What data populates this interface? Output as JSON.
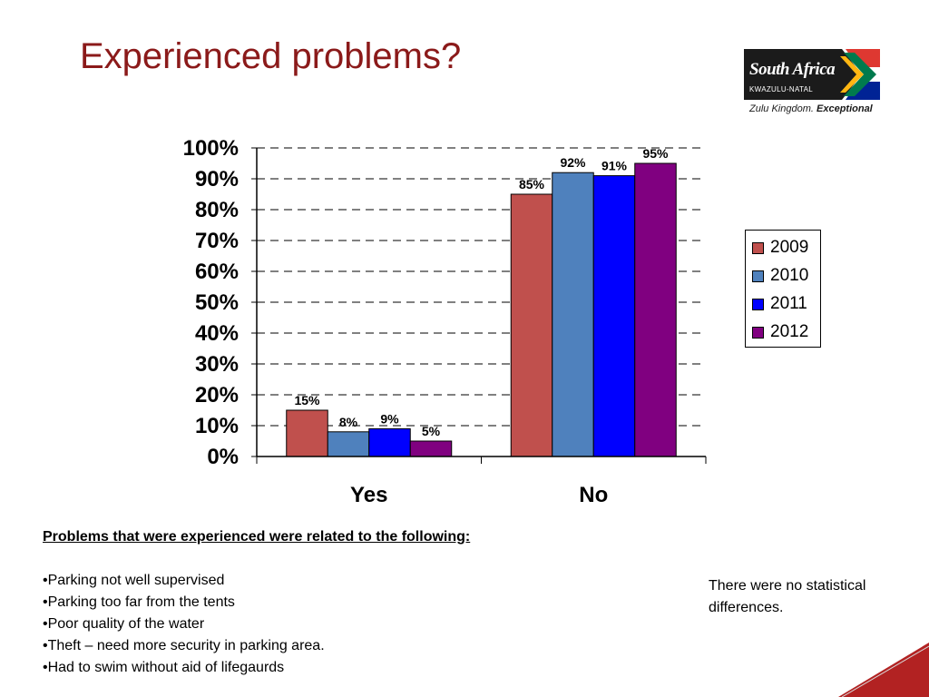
{
  "slide": {
    "title": "Experienced problems?"
  },
  "logo": {
    "line1": "South Africa",
    "line2": "KWAZULU-NATAL",
    "tagline_a": "Zulu Kingdom.",
    "tagline_b": "Exceptional"
  },
  "chart_data": {
    "type": "bar",
    "categories": [
      "Yes",
      "No"
    ],
    "series": [
      {
        "name": "2009",
        "values": [
          15,
          85
        ],
        "color": "#C0504D"
      },
      {
        "name": "2010",
        "values": [
          8,
          92
        ],
        "color": "#4F81BD"
      },
      {
        "name": "2011",
        "values": [
          9,
          91
        ],
        "color": "#0000FF"
      },
      {
        "name": "2012",
        "values": [
          5,
          95
        ],
        "color": "#800080"
      }
    ],
    "data_labels": [
      [
        "15%",
        "85%"
      ],
      [
        "8%",
        "92%"
      ],
      [
        "9%",
        "91%"
      ],
      [
        "5%",
        "95%"
      ]
    ],
    "y_ticks": [
      "0%",
      "10%",
      "20%",
      "30%",
      "40%",
      "50%",
      "60%",
      "70%",
      "80%",
      "90%",
      "100%"
    ],
    "ylim": [
      0,
      100
    ],
    "grid": "dashed horizontal",
    "legend_position": "right",
    "title": "",
    "xlabel": "",
    "ylabel": ""
  },
  "problems": {
    "heading": "Problems that were experienced were related to the following:",
    "items": [
      "•Parking not well supervised",
      "•Parking too far from the tents",
      "•Poor quality of the water",
      "•Theft – need more security in parking area.",
      "•Had to swim without aid of lifegaurds"
    ]
  },
  "note": {
    "text": "There were no statistical differences."
  },
  "colors": {
    "title": "#8B1A1A",
    "corner_accent": "#B22222"
  }
}
